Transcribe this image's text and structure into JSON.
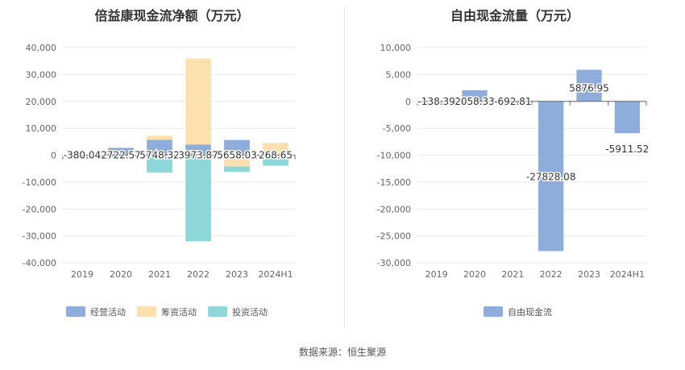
{
  "source_text": "数据来源：恒生聚源",
  "chart_data": [
    {
      "type": "bar",
      "stacked": true,
      "title": "倍益康现金流净额（万元）",
      "categories": [
        "2019",
        "2020",
        "2021",
        "2022",
        "2023",
        "2024H1"
      ],
      "ylim": [
        -40000,
        40000
      ],
      "yticks": [
        40000,
        30000,
        20000,
        10000,
        0,
        -10000,
        -20000,
        -30000,
        -40000
      ],
      "ytick_labels": [
        "40,000",
        "30,000",
        "20,000",
        "10,000",
        "0",
        "-10,000",
        "-20,000",
        "-30,000",
        "-40,000"
      ],
      "grid": true,
      "legend_position": "bottom",
      "series": [
        {
          "name": "经营活动",
          "color": "#8eaddb",
          "values": [
            -380.04,
            2722.57,
            5748.32,
            3973.87,
            5658.03,
            268.65
          ]
        },
        {
          "name": "筹资活动",
          "color": "#fde0b0",
          "values": [
            0,
            -300,
            1500,
            32000,
            -4200,
            4300
          ]
        },
        {
          "name": "投资活动",
          "color": "#8dd7d9",
          "values": [
            0,
            -600,
            -6500,
            -32000,
            -2000,
            -3900
          ]
        }
      ],
      "data_labels": [
        "-380.04",
        "2722.57",
        "5748.32",
        "3973.87",
        "5658.03",
        "268.65"
      ]
    },
    {
      "type": "bar",
      "title": "自由现金流量（万元）",
      "categories": [
        "2019",
        "2020",
        "2021",
        "2022",
        "2023",
        "2024H1"
      ],
      "ylim": [
        -30000,
        10000
      ],
      "yticks": [
        10000,
        5000,
        0,
        -5000,
        -10000,
        -15000,
        -20000,
        -25000,
        -30000
      ],
      "ytick_labels": [
        "10,000",
        "5,000",
        "0",
        "-5,000",
        "-10,000",
        "-15,000",
        "-20,000",
        "-25,000",
        "-30,000"
      ],
      "grid": true,
      "legend_position": "bottom",
      "series": [
        {
          "name": "自由现金流",
          "color": "#8eaddb",
          "values": [
            -138.39,
            2058.33,
            -692.81,
            -27828.08,
            5876.95,
            -5911.52
          ]
        }
      ],
      "data_labels": [
        "-138.39",
        "2058.33",
        "-692.81",
        "-27828.08",
        "5876.95",
        "-5911.52"
      ]
    }
  ]
}
